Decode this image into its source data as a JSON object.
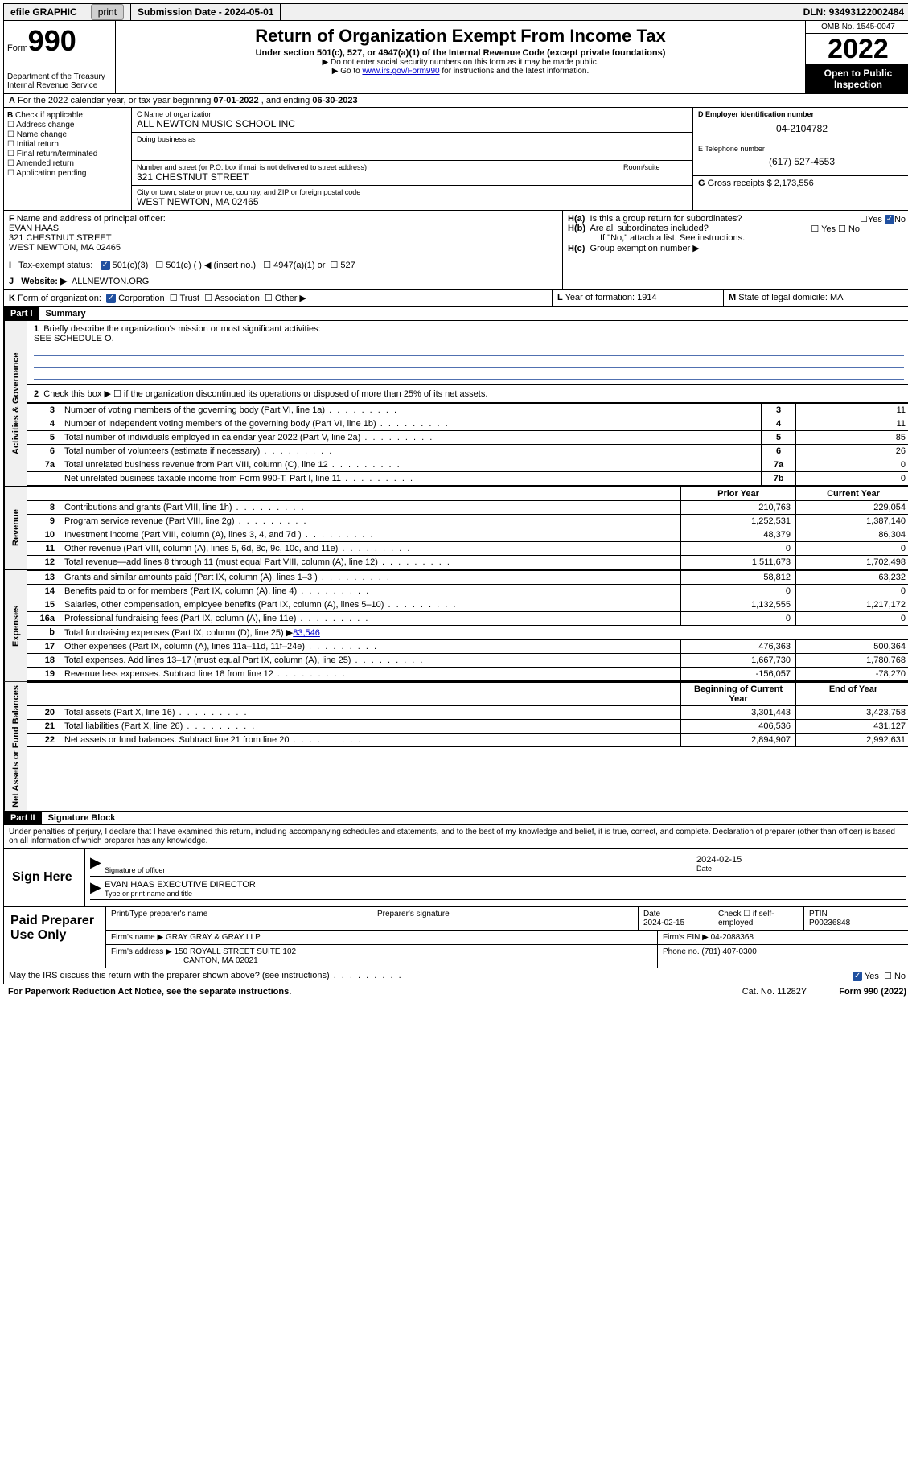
{
  "topbar": {
    "efile": "efile GRAPHIC",
    "print": "print",
    "submission_label": "Submission Date - ",
    "submission_date": "2024-05-01",
    "dln_label": "DLN: ",
    "dln": "93493122002484"
  },
  "header": {
    "form_word": "Form",
    "form_num": "990",
    "dept": "Department of the Treasury\nInternal Revenue Service",
    "title": "Return of Organization Exempt From Income Tax",
    "subtitle": "Under section 501(c), 527, or 4947(a)(1) of the Internal Revenue Code (except private foundations)",
    "note1": "Do not enter social security numbers on this form as it may be made public.",
    "note2_pre": "Go to ",
    "note2_link": "www.irs.gov/Form990",
    "note2_post": " for instructions and the latest information.",
    "omb": "OMB No. 1545-0047",
    "year": "2022",
    "inspection": "Open to Public Inspection"
  },
  "row_a": {
    "label": "A",
    "text_pre": "For the 2022 calendar year, or tax year beginning ",
    "begin": "07-01-2022",
    "mid": " , and ending ",
    "end": "06-30-2023"
  },
  "col_b": {
    "label": "B",
    "intro": "Check if applicable:",
    "items": [
      "Address change",
      "Name change",
      "Initial return",
      "Final return/terminated",
      "Amended return",
      "Application pending"
    ]
  },
  "col_c": {
    "name_label": "C Name of organization",
    "name": "ALL NEWTON MUSIC SCHOOL INC",
    "dba_label": "Doing business as",
    "addr_label": "Number and street (or P.O. box if mail is not delivered to street address)",
    "suite_label": "Room/suite",
    "street": "321 CHESTNUT STREET",
    "city_label": "City or town, state or province, country, and ZIP or foreign postal code",
    "city": "WEST NEWTON, MA  02465"
  },
  "col_right": {
    "d_label": "D Employer identification number",
    "d_val": "04-2104782",
    "e_label": "E Telephone number",
    "e_val": "(617) 527-4553",
    "g_label": "G",
    "g_text": "Gross receipts $ ",
    "g_val": "2,173,556"
  },
  "section_f": {
    "f_label": "F",
    "f_text": "Name and address of principal officer:",
    "f_name": "EVAN HAAS",
    "f_addr1": "321 CHESTNUT STREET",
    "f_addr2": "WEST NEWTON, MA  02465",
    "ha_label": "H(a)",
    "ha_text": "Is this a group return for subordinates?",
    "ha_yes": "Yes",
    "ha_no": "No",
    "hb_label": "H(b)",
    "hb_text": "Are all subordinates included?",
    "hb_note": "If \"No,\" attach a list. See instructions.",
    "hc_label": "H(c)",
    "hc_text": "Group exemption number ▶"
  },
  "row_i": {
    "label": "I",
    "text": "Tax-exempt status:",
    "opt1": "501(c)(3)",
    "opt2": "501(c) (  ) ◀ (insert no.)",
    "opt3": "4947(a)(1) or",
    "opt4": "527"
  },
  "row_j": {
    "label": "J",
    "text": "Website: ▶",
    "val": "ALLNEWTON.ORG"
  },
  "row_k": {
    "label": "K",
    "text": "Form of organization:",
    "corp": "Corporation",
    "trust": "Trust",
    "assoc": "Association",
    "other": "Other ▶",
    "l_label": "L",
    "l_text": "Year of formation: ",
    "l_val": "1914",
    "m_label": "M",
    "m_text": "State of legal domicile: ",
    "m_val": "MA"
  },
  "part1": {
    "header": "Part I",
    "title": "Summary"
  },
  "governance": {
    "side": "Activities & Governance",
    "line1_num": "1",
    "line1": "Briefly describe the organization's mission or most significant activities:",
    "line1_val": "SEE SCHEDULE O.",
    "line2_num": "2",
    "line2": "Check this box ▶ ☐  if the organization discontinued its operations or disposed of more than 25% of its net assets.",
    "rows": [
      {
        "n": "3",
        "d": "Number of voting members of the governing body (Part VI, line 1a)",
        "k": "3",
        "v": "11"
      },
      {
        "n": "4",
        "d": "Number of independent voting members of the governing body (Part VI, line 1b)",
        "k": "4",
        "v": "11"
      },
      {
        "n": "5",
        "d": "Total number of individuals employed in calendar year 2022 (Part V, line 2a)",
        "k": "5",
        "v": "85"
      },
      {
        "n": "6",
        "d": "Total number of volunteers (estimate if necessary)",
        "k": "6",
        "v": "26"
      },
      {
        "n": "7a",
        "d": "Total unrelated business revenue from Part VIII, column (C), line 12",
        "k": "7a",
        "v": "0"
      },
      {
        "n": "",
        "d": "Net unrelated business taxable income from Form 990-T, Part I, line 11",
        "k": "7b",
        "v": "0"
      }
    ]
  },
  "revenue": {
    "side": "Revenue",
    "header_prior": "Prior Year",
    "header_current": "Current Year",
    "rows": [
      {
        "n": "8",
        "d": "Contributions and grants (Part VIII, line 1h)",
        "p": "210,763",
        "c": "229,054"
      },
      {
        "n": "9",
        "d": "Program service revenue (Part VIII, line 2g)",
        "p": "1,252,531",
        "c": "1,387,140"
      },
      {
        "n": "10",
        "d": "Investment income (Part VIII, column (A), lines 3, 4, and 7d )",
        "p": "48,379",
        "c": "86,304"
      },
      {
        "n": "11",
        "d": "Other revenue (Part VIII, column (A), lines 5, 6d, 8c, 9c, 10c, and 11e)",
        "p": "0",
        "c": "0"
      },
      {
        "n": "12",
        "d": "Total revenue—add lines 8 through 11 (must equal Part VIII, column (A), line 12)",
        "p": "1,511,673",
        "c": "1,702,498"
      }
    ]
  },
  "expenses": {
    "side": "Expenses",
    "rows": [
      {
        "n": "13",
        "d": "Grants and similar amounts paid (Part IX, column (A), lines 1–3 )",
        "p": "58,812",
        "c": "63,232"
      },
      {
        "n": "14",
        "d": "Benefits paid to or for members (Part IX, column (A), line 4)",
        "p": "0",
        "c": "0"
      },
      {
        "n": "15",
        "d": "Salaries, other compensation, employee benefits (Part IX, column (A), lines 5–10)",
        "p": "1,132,555",
        "c": "1,217,172"
      },
      {
        "n": "16a",
        "d": "Professional fundraising fees (Part IX, column (A), line 11e)",
        "p": "0",
        "c": "0"
      }
    ],
    "line_b_n": "b",
    "line_b": "Total fundraising expenses (Part IX, column (D), line 25) ▶",
    "line_b_val": "83,546",
    "rows2": [
      {
        "n": "17",
        "d": "Other expenses (Part IX, column (A), lines 11a–11d, 11f–24e)",
        "p": "476,363",
        "c": "500,364"
      },
      {
        "n": "18",
        "d": "Total expenses. Add lines 13–17 (must equal Part IX, column (A), line 25)",
        "p": "1,667,730",
        "c": "1,780,768"
      },
      {
        "n": "19",
        "d": "Revenue less expenses. Subtract line 18 from line 12",
        "p": "-156,057",
        "c": "-78,270"
      }
    ]
  },
  "netassets": {
    "side": "Net Assets or Fund Balances",
    "header_begin": "Beginning of Current Year",
    "header_end": "End of Year",
    "rows": [
      {
        "n": "20",
        "d": "Total assets (Part X, line 16)",
        "p": "3,301,443",
        "c": "3,423,758"
      },
      {
        "n": "21",
        "d": "Total liabilities (Part X, line 26)",
        "p": "406,536",
        "c": "431,127"
      },
      {
        "n": "22",
        "d": "Net assets or fund balances. Subtract line 21 from line 20",
        "p": "2,894,907",
        "c": "2,992,631"
      }
    ]
  },
  "part2": {
    "header": "Part II",
    "title": "Signature Block"
  },
  "penalty": "Under penalties of perjury, I declare that I have examined this return, including accompanying schedules and statements, and to the best of my knowledge and belief, it is true, correct, and complete. Declaration of preparer (other than officer) is based on all information of which preparer has any knowledge.",
  "sign": {
    "label": "Sign Here",
    "sig_label": "Signature of officer",
    "date_label": "Date",
    "date_val": "2024-02-15",
    "name": "EVAN HAAS  EXECUTIVE DIRECTOR",
    "name_label": "Type or print name and title"
  },
  "prep": {
    "label": "Paid Preparer Use Only",
    "col1": "Print/Type preparer's name",
    "col2": "Preparer's signature",
    "col3_label": "Date",
    "col3_val": "2024-02-15",
    "col4_label": "Check ☐ if self-employed",
    "col5_label": "PTIN",
    "col5_val": "P00236848",
    "firm_name_label": "Firm's name    ▶",
    "firm_name": "GRAY GRAY & GRAY LLP",
    "firm_ein_label": "Firm's EIN ▶",
    "firm_ein": "04-2088368",
    "firm_addr_label": "Firm's address ▶",
    "firm_addr1": "150 ROYALL STREET SUITE 102",
    "firm_addr2": "CANTON, MA  02021",
    "phone_label": "Phone no. ",
    "phone": "(781) 407-0300"
  },
  "footer": {
    "discuss": "May the IRS discuss this return with the preparer shown above? (see instructions)",
    "yes": "Yes",
    "no": "No",
    "paperwork": "For Paperwork Reduction Act Notice, see the separate instructions.",
    "cat": "Cat. No. 11282Y",
    "form": "Form 990 (2022)"
  }
}
